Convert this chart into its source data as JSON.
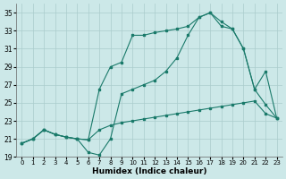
{
  "xlabel": "Humidex (Indice chaleur)",
  "bg_color": "#cce8e8",
  "grid_color": "#aacccc",
  "line_color": "#1a7a6a",
  "xlim": [
    -0.5,
    23.5
  ],
  "ylim": [
    19,
    36
  ],
  "yticks": [
    19,
    21,
    23,
    25,
    27,
    29,
    31,
    33,
    35
  ],
  "xticks": [
    0,
    1,
    2,
    3,
    4,
    5,
    6,
    7,
    8,
    9,
    10,
    11,
    12,
    13,
    14,
    15,
    16,
    17,
    18,
    19,
    20,
    21,
    22,
    23
  ],
  "line1_x": [
    0,
    1,
    2,
    3,
    4,
    5,
    6,
    7,
    8,
    9,
    10,
    11,
    12,
    13,
    14,
    15,
    16,
    17,
    18,
    19,
    20,
    21,
    22,
    23
  ],
  "line1_y": [
    20.5,
    21.0,
    22.0,
    21.5,
    21.2,
    21.0,
    20.9,
    22.0,
    22.5,
    22.8,
    23.0,
    23.2,
    23.4,
    23.6,
    23.8,
    24.0,
    24.2,
    24.4,
    24.6,
    24.8,
    25.0,
    25.2,
    23.8,
    23.3
  ],
  "line2_x": [
    0,
    1,
    2,
    3,
    4,
    5,
    6,
    7,
    8,
    9,
    10,
    11,
    12,
    13,
    14,
    15,
    16,
    17,
    18,
    19,
    20,
    21,
    22,
    23
  ],
  "line2_y": [
    20.5,
    21.0,
    22.0,
    21.5,
    21.2,
    21.0,
    19.5,
    19.2,
    21.0,
    26.0,
    26.5,
    27.0,
    27.5,
    28.5,
    30.0,
    32.5,
    34.5,
    35.0,
    34.0,
    33.2,
    31.0,
    26.5,
    28.5,
    23.3
  ],
  "line3_x": [
    0,
    1,
    2,
    3,
    4,
    5,
    6,
    7,
    8,
    9,
    10,
    11,
    12,
    13,
    14,
    15,
    16,
    17,
    18,
    19,
    20,
    21,
    22,
    23
  ],
  "line3_y": [
    20.5,
    21.0,
    22.0,
    21.5,
    21.2,
    21.0,
    20.9,
    26.5,
    29.0,
    29.5,
    32.5,
    32.5,
    32.8,
    33.0,
    33.2,
    33.5,
    34.5,
    35.0,
    33.5,
    33.2,
    31.0,
    26.5,
    24.8,
    23.3
  ]
}
